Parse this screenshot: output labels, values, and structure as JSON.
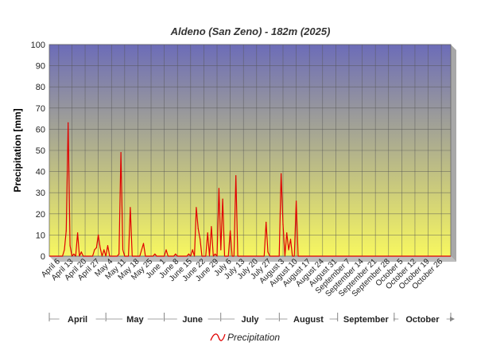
{
  "chart_data": {
    "type": "line",
    "title": "Aldeno (San Zeno) - 182m (2025)",
    "xlabel": "",
    "ylabel": "Precipitation [mm]",
    "ylim": [
      0,
      100
    ],
    "yticks": [
      0,
      10,
      20,
      30,
      40,
      50,
      60,
      70,
      80,
      90,
      100
    ],
    "xlim": [
      "2025-04-01",
      "2025-10-31"
    ],
    "grid": true,
    "legend_position": "bottom",
    "x_tick_labels": [
      {
        "date": "2025-04-06",
        "label": "April 6"
      },
      {
        "date": "2025-04-13",
        "label": "April 13"
      },
      {
        "date": "2025-04-20",
        "label": "April 20"
      },
      {
        "date": "2025-04-27",
        "label": "April 27"
      },
      {
        "date": "2025-05-04",
        "label": "May 4"
      },
      {
        "date": "2025-05-11",
        "label": "May 11"
      },
      {
        "date": "2025-05-18",
        "label": "May 18"
      },
      {
        "date": "2025-05-25",
        "label": "May 25"
      },
      {
        "date": "2025-06-01",
        "label": "June 1"
      },
      {
        "date": "2025-06-08",
        "label": "June 8"
      },
      {
        "date": "2025-06-15",
        "label": "June 15"
      },
      {
        "date": "2025-06-22",
        "label": "June 22"
      },
      {
        "date": "2025-06-29",
        "label": "June 29"
      },
      {
        "date": "2025-07-06",
        "label": "July 6"
      },
      {
        "date": "2025-07-13",
        "label": "July 13"
      },
      {
        "date": "2025-07-20",
        "label": "July 20"
      },
      {
        "date": "2025-07-27",
        "label": "July 27"
      },
      {
        "date": "2025-08-03",
        "label": "August 3"
      },
      {
        "date": "2025-08-10",
        "label": "August 10"
      },
      {
        "date": "2025-08-17",
        "label": "August 17"
      },
      {
        "date": "2025-08-24",
        "label": "August 24"
      },
      {
        "date": "2025-08-31",
        "label": "August 31"
      },
      {
        "date": "2025-09-07",
        "label": "September 7"
      },
      {
        "date": "2025-09-14",
        "label": "September 14"
      },
      {
        "date": "2025-09-21",
        "label": "September 21"
      },
      {
        "date": "2025-09-28",
        "label": "September 28"
      },
      {
        "date": "2025-10-05",
        "label": "October 5"
      },
      {
        "date": "2025-10-12",
        "label": "October 12"
      },
      {
        "date": "2025-10-19",
        "label": "October 19"
      },
      {
        "date": "2025-10-26",
        "label": "October 26"
      }
    ],
    "months": [
      {
        "label": "April",
        "start": "2025-04-01",
        "end": "2025-05-01"
      },
      {
        "label": "May",
        "start": "2025-05-01",
        "end": "2025-06-01"
      },
      {
        "label": "June",
        "start": "2025-06-01",
        "end": "2025-07-01"
      },
      {
        "label": "July",
        "start": "2025-07-01",
        "end": "2025-08-01"
      },
      {
        "label": "August",
        "start": "2025-08-01",
        "end": "2025-09-01"
      },
      {
        "label": "September",
        "start": "2025-09-01",
        "end": "2025-10-01"
      },
      {
        "label": "October",
        "start": "2025-10-01",
        "end": "2025-11-01"
      }
    ],
    "series": [
      {
        "name": "Precipitation",
        "color": "#e00000",
        "points": [
          [
            "2025-04-01",
            0
          ],
          [
            "2025-04-08",
            0
          ],
          [
            "2025-04-09",
            3
          ],
          [
            "2025-04-10",
            12
          ],
          [
            "2025-04-11",
            63
          ],
          [
            "2025-04-12",
            5
          ],
          [
            "2025-04-13",
            0
          ],
          [
            "2025-04-14",
            1
          ],
          [
            "2025-04-15",
            0
          ],
          [
            "2025-04-16",
            11
          ],
          [
            "2025-04-17",
            0
          ],
          [
            "2025-04-18",
            2
          ],
          [
            "2025-04-19",
            0
          ],
          [
            "2025-04-24",
            0
          ],
          [
            "2025-04-25",
            3
          ],
          [
            "2025-04-26",
            4
          ],
          [
            "2025-04-27",
            10
          ],
          [
            "2025-04-28",
            4
          ],
          [
            "2025-04-29",
            0
          ],
          [
            "2025-04-30",
            3
          ],
          [
            "2025-05-01",
            0
          ],
          [
            "2025-05-02",
            5
          ],
          [
            "2025-05-03",
            0
          ],
          [
            "2025-05-07",
            0
          ],
          [
            "2025-05-08",
            1
          ],
          [
            "2025-05-09",
            49
          ],
          [
            "2025-05-10",
            3
          ],
          [
            "2025-05-11",
            0
          ],
          [
            "2025-05-13",
            0
          ],
          [
            "2025-05-14",
            23
          ],
          [
            "2025-05-15",
            0
          ],
          [
            "2025-05-19",
            0
          ],
          [
            "2025-05-21",
            6
          ],
          [
            "2025-05-22",
            0
          ],
          [
            "2025-05-26",
            0
          ],
          [
            "2025-05-27",
            1
          ],
          [
            "2025-05-28",
            0
          ],
          [
            "2025-06-01",
            0
          ],
          [
            "2025-06-02",
            3
          ],
          [
            "2025-06-03",
            0
          ],
          [
            "2025-06-06",
            0
          ],
          [
            "2025-06-07",
            1
          ],
          [
            "2025-06-08",
            0
          ],
          [
            "2025-06-13",
            0
          ],
          [
            "2025-06-14",
            1
          ],
          [
            "2025-06-15",
            0
          ],
          [
            "2025-06-16",
            3
          ],
          [
            "2025-06-17",
            0
          ],
          [
            "2025-06-18",
            23
          ],
          [
            "2025-06-19",
            13
          ],
          [
            "2025-06-20",
            8
          ],
          [
            "2025-06-21",
            0
          ],
          [
            "2025-06-23",
            0
          ],
          [
            "2025-06-24",
            11
          ],
          [
            "2025-06-25",
            0
          ],
          [
            "2025-06-26",
            14
          ],
          [
            "2025-06-27",
            0
          ],
          [
            "2025-06-28",
            1
          ],
          [
            "2025-06-29",
            0
          ],
          [
            "2025-06-30",
            32
          ],
          [
            "2025-07-01",
            3
          ],
          [
            "2025-07-02",
            27
          ],
          [
            "2025-07-03",
            0
          ],
          [
            "2025-07-05",
            0
          ],
          [
            "2025-07-06",
            12
          ],
          [
            "2025-07-07",
            0
          ],
          [
            "2025-07-08",
            0
          ],
          [
            "2025-07-09",
            38
          ],
          [
            "2025-07-10",
            0
          ],
          [
            "2025-07-24",
            0
          ],
          [
            "2025-07-25",
            16
          ],
          [
            "2025-07-26",
            2
          ],
          [
            "2025-07-27",
            0
          ],
          [
            "2025-08-01",
            0
          ],
          [
            "2025-08-02",
            39
          ],
          [
            "2025-08-03",
            15
          ],
          [
            "2025-08-04",
            0
          ],
          [
            "2025-08-05",
            11
          ],
          [
            "2025-08-06",
            3
          ],
          [
            "2025-08-07",
            8
          ],
          [
            "2025-08-08",
            0
          ],
          [
            "2025-08-09",
            0
          ],
          [
            "2025-08-10",
            26
          ],
          [
            "2025-08-11",
            0
          ],
          [
            "2025-10-31",
            0
          ]
        ]
      }
    ]
  },
  "colors": {
    "plot_top": "#6c6cb8",
    "plot_bottom": "#f7f760",
    "grid": "#555555",
    "line": "#e00000"
  }
}
